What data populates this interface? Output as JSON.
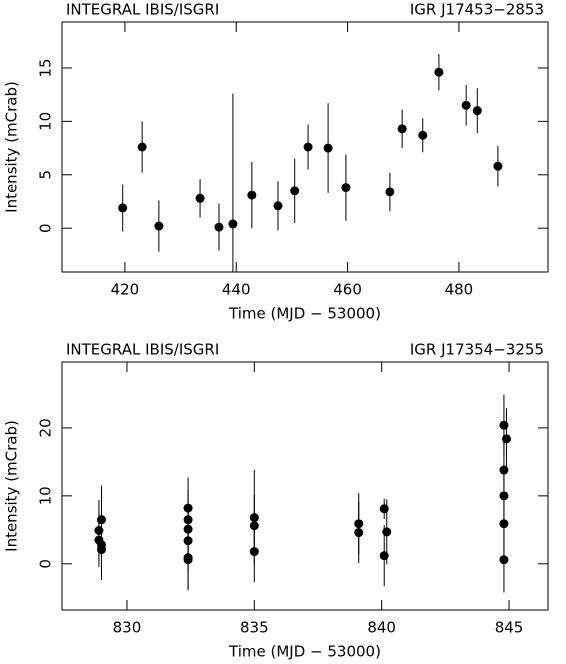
{
  "chart_data": [
    {
      "type": "scatter",
      "title": "INTEGRAL IBIS/ISGRI",
      "subtitle": "IGR J17453−2853",
      "x_label": "Time (MJD − 53000)",
      "y_label": "Intensity (mCrab)",
      "xlim": [
        408.7,
        496
      ],
      "ylim": [
        -4.1,
        19.3
      ],
      "xticks": [
        420,
        440,
        460,
        480
      ],
      "yticks": [
        0,
        5,
        10,
        15
      ],
      "series": [
        {
          "color": "#000000",
          "x": [
            419.6,
            423.1,
            426.1,
            433.5,
            436.9,
            439.4,
            442.8,
            447.5,
            450.5,
            452.9,
            456.5,
            459.7,
            467.6,
            469.8,
            473.5,
            476.4,
            481.3,
            483.3,
            487.0
          ],
          "values": [
            1.9,
            7.6,
            0.2,
            2.8,
            0.1,
            0.4,
            3.1,
            2.1,
            3.5,
            7.6,
            7.5,
            3.8,
            3.4,
            9.3,
            8.7,
            14.6,
            11.5,
            11.0,
            5.8
          ],
          "errors": [
            2.2,
            2.4,
            2.4,
            1.8,
            2.2,
            12.2,
            3.1,
            2.3,
            3.0,
            2.1,
            4.2,
            3.1,
            1.8,
            1.8,
            1.6,
            1.7,
            1.9,
            2.1,
            1.9
          ]
        }
      ]
    },
    {
      "type": "scatter",
      "title": "INTEGRAL IBIS/ISGRI",
      "subtitle": "IGR J17354−3255",
      "x_label": "Time (MJD − 53000)",
      "y_label": "Intensity (mCrab)",
      "xlim": [
        827.45,
        846.53
      ],
      "ylim": [
        -6.8,
        29.7
      ],
      "xticks": [
        830,
        835,
        840,
        845
      ],
      "yticks": [
        0,
        10,
        20
      ],
      "series": [
        {
          "color": "#000000",
          "x": [
            828.9,
            828.9,
            829.0,
            829.0,
            829.0,
            832.4,
            832.4,
            832.4,
            832.4,
            832.4,
            832.4,
            835.0,
            835.0,
            835.0,
            839.1,
            839.1,
            840.1,
            840.2,
            840.1,
            844.8,
            844.8,
            844.8,
            844.8,
            844.8,
            844.9
          ],
          "values": [
            4.9,
            3.5,
            2.8,
            6.5,
            2.1,
            8.2,
            6.5,
            5.1,
            3.4,
            0.9,
            0.6,
            5.6,
            6.8,
            1.8,
            5.9,
            4.6,
            8.1,
            4.7,
            1.2,
            13.8,
            10.0,
            5.9,
            0.6,
            20.4,
            18.4
          ],
          "errors": [
            4.5,
            4.0,
            4.5,
            5.0,
            4.5,
            4.5,
            4.5,
            4.5,
            4.5,
            4.5,
            4.5,
            4.5,
            7.0,
            4.5,
            4.5,
            4.5,
            1.5,
            4.8,
            4.5,
            4.5,
            4.5,
            4.5,
            4.8,
            4.5,
            4.5
          ]
        }
      ]
    }
  ]
}
